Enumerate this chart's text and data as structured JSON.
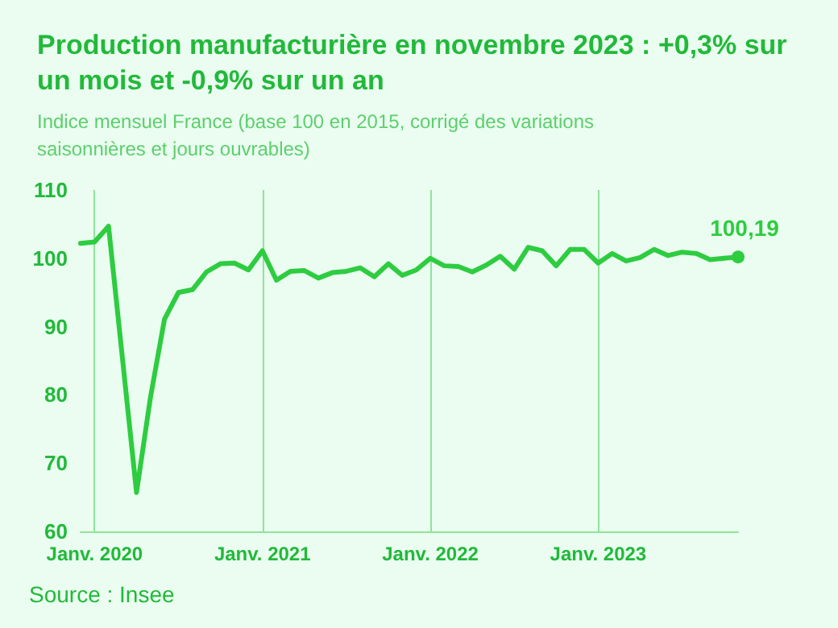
{
  "chart_data": {
    "type": "line",
    "title": "Production manufacturière en novembre 2023 : +0,3% sur un mois et -0,9% sur un an",
    "subtitle": "Indice mensuel France (base 100 en 2015, corrigé des variations saisonnières et jours ouvrables)",
    "x": [
      "2019-12",
      "2020-01",
      "2020-02",
      "2020-03",
      "2020-04",
      "2020-05",
      "2020-06",
      "2020-07",
      "2020-08",
      "2020-09",
      "2020-10",
      "2020-11",
      "2020-12",
      "2021-01",
      "2021-02",
      "2021-03",
      "2021-04",
      "2021-05",
      "2021-06",
      "2021-07",
      "2021-08",
      "2021-09",
      "2021-10",
      "2021-11",
      "2021-12",
      "2022-01",
      "2022-02",
      "2022-03",
      "2022-04",
      "2022-05",
      "2022-06",
      "2022-07",
      "2022-08",
      "2022-09",
      "2022-10",
      "2022-11",
      "2022-12",
      "2023-01",
      "2023-02",
      "2023-03",
      "2023-04",
      "2023-05",
      "2023-06",
      "2023-07",
      "2023-08",
      "2023-09",
      "2023-10",
      "2023-11"
    ],
    "series": [
      {
        "color": "#2ecc40",
        "values": [
          102.2,
          102.4,
          104.7,
          85.2,
          65.7,
          79.7,
          91.1,
          95.0,
          95.4,
          98.0,
          99.2,
          99.3,
          98.3,
          101.1,
          96.8,
          98.1,
          98.2,
          97.1,
          97.9,
          98.1,
          98.6,
          97.3,
          99.2,
          97.5,
          98.3,
          100.0,
          98.9,
          98.8,
          98.0,
          99.0,
          100.3,
          98.4,
          101.6,
          101.1,
          98.9,
          101.3,
          101.3,
          99.3,
          100.7,
          99.6,
          100.1,
          101.3,
          100.4,
          100.9,
          100.7,
          99.8,
          100.0,
          100.19
        ],
        "value_labels": [
          null,
          null,
          null,
          null,
          null,
          null,
          null,
          null,
          null,
          null,
          null,
          null,
          null,
          null,
          null,
          null,
          null,
          null,
          null,
          null,
          null,
          null,
          null,
          null,
          null,
          null,
          null,
          null,
          null,
          null,
          null,
          null,
          null,
          null,
          null,
          null,
          null,
          null,
          null,
          null,
          null,
          null,
          null,
          null,
          null,
          null,
          null,
          "100,19"
        ]
      }
    ],
    "xticks": [
      {
        "value": "2020-01",
        "label": "Janv. 2020"
      },
      {
        "value": "2021-01",
        "label": "Janv. 2021"
      },
      {
        "value": "2022-01",
        "label": "Janv. 2022"
      },
      {
        "value": "2023-01",
        "label": "Janv. 2023"
      }
    ],
    "xlim": [
      "2019-12",
      "2023-11"
    ],
    "ylim": [
      60,
      110
    ],
    "yticks": [
      60,
      70,
      80,
      90,
      100,
      110
    ],
    "grid": "x",
    "annotations": [
      "Source : Insee"
    ]
  }
}
